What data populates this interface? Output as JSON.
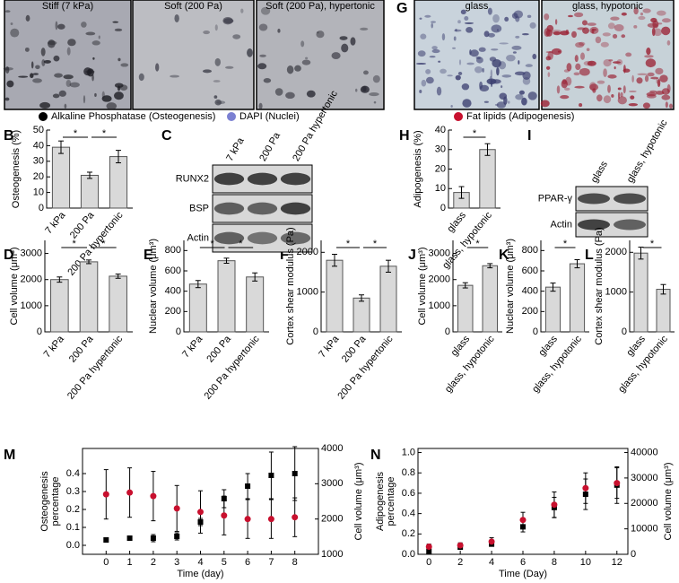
{
  "panel_letters": [
    "A",
    "G",
    "B",
    "C",
    "H",
    "I",
    "D",
    "E",
    "F",
    "J",
    "K",
    "L",
    "M",
    "N"
  ],
  "images": {
    "osteo": [
      "Stiff (7 kPa)",
      "Soft (200 Pa)",
      "Soft (200 Pa), hypertonic"
    ],
    "adipo": [
      "glass",
      "glass, hypotonic"
    ]
  },
  "legends": {
    "osteo": [
      {
        "label": "Alkaline Phosphatase (Osteogenesis)",
        "color": "#000000"
      },
      {
        "label": "DAPI (Nuclei)",
        "color": "#7b80d2"
      }
    ],
    "adipo": [
      {
        "label": "Fat lipids (Adipogenesis)",
        "color": "#c8102e"
      }
    ]
  },
  "blots": [
    {
      "lanes": [
        "7 kPa",
        "200 Pa",
        "200 Pa hypertonic"
      ],
      "rows": [
        "RUNX2",
        "BSP",
        "Actin"
      ]
    },
    {
      "lanes": [
        "glass",
        "glass, hypotonic"
      ],
      "rows": [
        "PPAR-γ",
        "Actin"
      ]
    }
  ],
  "chart_data": [
    {
      "type": "bar",
      "ylabel": "Osteogenesis (%)",
      "categories": [
        "7 kPa",
        "200 Pa",
        "200 Pa hypertonic"
      ],
      "values": [
        39,
        21,
        33
      ],
      "errors": [
        4,
        2,
        4
      ],
      "ylim": [
        0,
        50
      ],
      "yticks": [
        0,
        10,
        20,
        30,
        40,
        50
      ],
      "color": "#d9d9d9",
      "brackets": [
        {
          "label": "*",
          "between": [
            0,
            1
          ]
        },
        {
          "label": "*",
          "between": [
            1,
            2
          ]
        }
      ]
    },
    {
      "type": "bar",
      "ylabel": "Adipogenesis (%)",
      "categories": [
        "glass",
        "glass, hypotonic"
      ],
      "values": [
        8,
        30
      ],
      "errors": [
        3,
        3
      ],
      "ylim": [
        0,
        40
      ],
      "yticks": [
        0,
        10,
        20,
        30,
        40
      ],
      "color": "#d9d9d9",
      "brackets": [
        {
          "label": "*",
          "between": [
            0,
            1
          ]
        }
      ]
    },
    {
      "type": "bar",
      "ylabel": "Cell volume (μm³)",
      "categories": [
        "7 kPa",
        "200 Pa",
        "200 Pa hypertonic"
      ],
      "values": [
        2000,
        2680,
        2130
      ],
      "errors": [
        100,
        70,
        80
      ],
      "ylim": [
        0,
        3500
      ],
      "yticks": [
        0,
        1000,
        2000,
        3000
      ],
      "color": "#d9d9d9",
      "brackets": [
        {
          "label": "*",
          "between": [
            0,
            1
          ]
        },
        {
          "label": "*",
          "between": [
            1,
            2
          ]
        }
      ]
    },
    {
      "type": "bar",
      "ylabel": "Nuclear volume (μm³)",
      "categories": [
        "7 kPa",
        "200 Pa",
        "200 Pa hypertonic"
      ],
      "values": [
        470,
        700,
        540
      ],
      "errors": [
        35,
        25,
        40
      ],
      "ylim": [
        0,
        900
      ],
      "yticks": [
        0,
        200,
        400,
        600,
        800
      ],
      "color": "#d9d9d9",
      "brackets": [
        {
          "label": "*",
          "between": [
            0,
            1
          ]
        },
        {
          "label": "*",
          "between": [
            1,
            2
          ]
        }
      ]
    },
    {
      "type": "bar",
      "ylabel": "Cortex shear modulus (Pa)",
      "categories": [
        "7 kPa",
        "200 Pa",
        "200 Pa hypertonic"
      ],
      "values": [
        1800,
        850,
        1650
      ],
      "errors": [
        150,
        80,
        150
      ],
      "ylim": [
        0,
        2300
      ],
      "yticks": [
        0,
        1000,
        2000
      ],
      "color": "#d9d9d9",
      "brackets": [
        {
          "label": "*",
          "between": [
            0,
            1
          ]
        },
        {
          "label": "*",
          "between": [
            1,
            2
          ]
        }
      ]
    },
    {
      "type": "bar",
      "ylabel": "Cell volume (μm³)",
      "categories": [
        "glass",
        "glass, hypotonic"
      ],
      "values": [
        1780,
        2530
      ],
      "errors": [
        100,
        80
      ],
      "ylim": [
        0,
        3500
      ],
      "yticks": [
        0,
        1000,
        2000,
        3000
      ],
      "color": "#d9d9d9",
      "brackets": [
        {
          "label": "*",
          "between": [
            0,
            1
          ]
        }
      ]
    },
    {
      "type": "bar",
      "ylabel": "Nuclear volume (μm³)",
      "categories": [
        "glass",
        "glass, hypotonic"
      ],
      "values": [
        440,
        670
      ],
      "errors": [
        40,
        40
      ],
      "ylim": [
        0,
        900
      ],
      "yticks": [
        0,
        200,
        400,
        600,
        800
      ],
      "color": "#d9d9d9",
      "brackets": [
        {
          "label": "*",
          "between": [
            0,
            1
          ]
        }
      ]
    },
    {
      "type": "bar",
      "ylabel": "Cortex shear modulus (Pa)",
      "categories": [
        "glass",
        "glass, hypotonic"
      ],
      "values": [
        1980,
        1070
      ],
      "errors": [
        150,
        120
      ],
      "ylim": [
        0,
        2300
      ],
      "yticks": [
        0,
        1000,
        2000
      ],
      "color": "#d9d9d9",
      "brackets": [
        {
          "label": "*",
          "between": [
            0,
            1
          ]
        }
      ]
    },
    {
      "type": "scatter",
      "xlabel": "Time (day)",
      "ylabel": [
        "Osteogenesis",
        "percentage"
      ],
      "y2label": "Cell volume (μm³)",
      "x": [
        0,
        1,
        2,
        3,
        4,
        5,
        6,
        7,
        8
      ],
      "xlim": [
        -1,
        9
      ],
      "xticks": [
        0,
        1,
        2,
        3,
        4,
        5,
        6,
        7,
        8
      ],
      "ylim": [
        -0.05,
        0.54
      ],
      "yticks": [
        {
          "value": 0,
          "label": "0.0"
        },
        0.1,
        0.2,
        0.3,
        0.4
      ],
      "y2lim": [
        1000,
        4000
      ],
      "y2ticks": [
        1000,
        2000,
        3000,
        4000
      ],
      "y2color": "#c8102e",
      "series": [
        {
          "color": "#000000",
          "marker": "square",
          "values": [
            0.03,
            0.04,
            0.04,
            0.05,
            0.13,
            0.26,
            0.33,
            0.39,
            0.4
          ],
          "errors": [
            0.01,
            0.01,
            0.02,
            0.02,
            0.02,
            0.05,
            0.07,
            0.13,
            0.15
          ]
        },
        {
          "color": "#c8102e",
          "marker": "circle",
          "axis": "y2",
          "values": [
            2700,
            2750,
            2650,
            2300,
            2200,
            2100,
            2000,
            2000,
            2050
          ],
          "errors": [
            700,
            700,
            700,
            650,
            600,
            550,
            550,
            550,
            550
          ]
        }
      ]
    },
    {
      "type": "scatter",
      "xlabel": "Time (Day)",
      "ylabel": [
        "Adipogenesis",
        "percentage"
      ],
      "y2label": "Cell volume (μm³)",
      "x": [
        0,
        2,
        4,
        6,
        8,
        10,
        12
      ],
      "xlim": [
        -0.7,
        12.7
      ],
      "xticks": [
        0,
        2,
        4,
        6,
        8,
        10,
        12
      ],
      "ylim": [
        0,
        1.04
      ],
      "yticks": [
        {
          "value": 0,
          "label": "0.0"
        },
        0.2,
        0.4,
        0.6,
        0.8,
        {
          "value": 1,
          "label": "1.0"
        }
      ],
      "y2lim": [
        0,
        41600
      ],
      "y2ticks": [
        0,
        10000,
        20000,
        30000,
        40000
      ],
      "y2color": "#c8102e",
      "series": [
        {
          "color": "#000000",
          "marker": "square",
          "values": [
            0.03,
            0.07,
            0.1,
            0.27,
            0.46,
            0.59,
            0.68
          ],
          "errors": [
            0.01,
            0.01,
            0.02,
            0.05,
            0.1,
            0.15,
            0.18
          ]
        },
        {
          "color": "#c8102e",
          "marker": "circle",
          "axis": "y2",
          "values": [
            3000,
            3500,
            5000,
            13500,
            19500,
            26000,
            28000
          ],
          "errors": [
            1000,
            1000,
            1500,
            3000,
            5000,
            6000,
            6000
          ]
        }
      ]
    }
  ]
}
